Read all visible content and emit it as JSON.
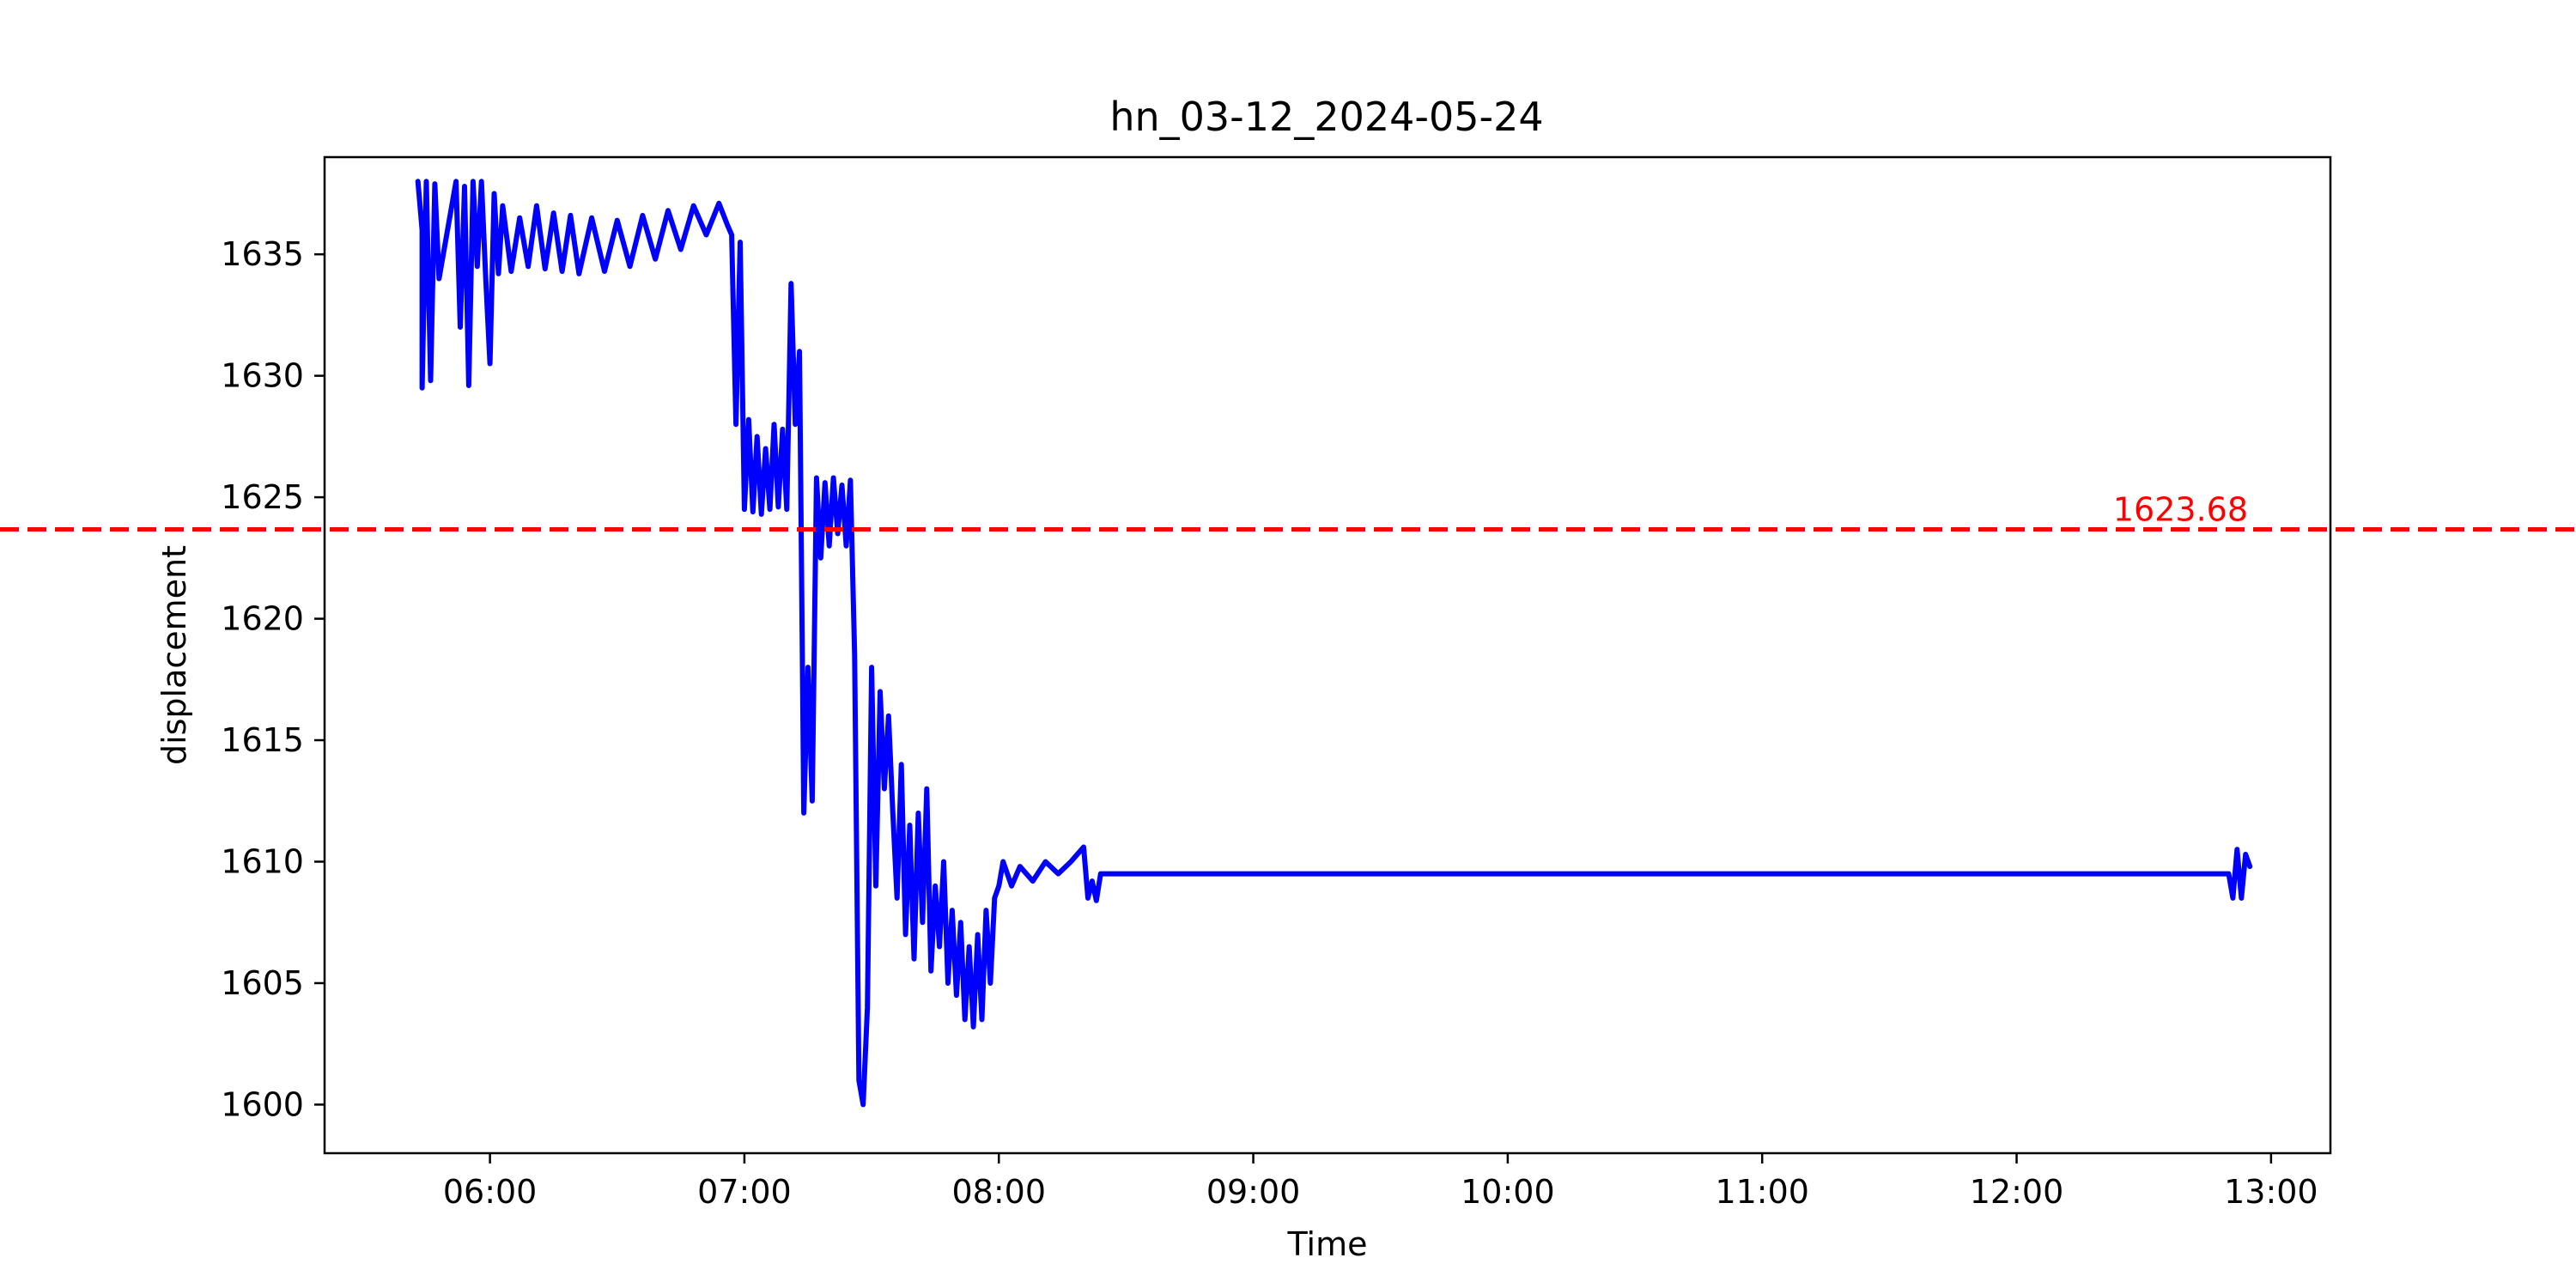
{
  "chart_data": {
    "type": "line",
    "title": "hn_03-12_2024-05-24",
    "xlabel": "Time",
    "ylabel": "displacement",
    "x_unit": "HH:MM",
    "xlim": [
      "05:21",
      "13:14"
    ],
    "ylim": [
      1598.0,
      1639.0
    ],
    "x_ticks": [
      "06:00",
      "07:00",
      "08:00",
      "09:00",
      "10:00",
      "11:00",
      "12:00",
      "13:00"
    ],
    "y_ticks": [
      1600,
      1605,
      1610,
      1615,
      1620,
      1625,
      1630,
      1635
    ],
    "grid": false,
    "colors": {
      "series": "#0000ff",
      "reference": "#ff0000",
      "axes": "#000000"
    },
    "reference_line": {
      "value": 1623.68,
      "label": "1623.68",
      "style": "dashed"
    },
    "series": [
      {
        "values": [
          [
            "05:43",
            1638.0
          ],
          [
            "05:44",
            1636.0
          ],
          [
            "05:44",
            1629.5
          ],
          [
            "05:45",
            1638.0
          ],
          [
            "05:46",
            1629.8
          ],
          [
            "05:47",
            1637.9
          ],
          [
            "05:48",
            1634.0
          ],
          [
            "05:52",
            1638.0
          ],
          [
            "05:53",
            1632.0
          ],
          [
            "05:54",
            1637.8
          ],
          [
            "05:55",
            1629.6
          ],
          [
            "05:56",
            1638.0
          ],
          [
            "05:57",
            1634.5
          ],
          [
            "05:58",
            1638.0
          ],
          [
            "05:59",
            1634.0
          ],
          [
            "06:00",
            1630.5
          ],
          [
            "06:01",
            1637.5
          ],
          [
            "06:02",
            1634.2
          ],
          [
            "06:03",
            1637.0
          ],
          [
            "06:05",
            1634.3
          ],
          [
            "06:07",
            1636.5
          ],
          [
            "06:09",
            1634.5
          ],
          [
            "06:11",
            1637.0
          ],
          [
            "06:13",
            1634.4
          ],
          [
            "06:15",
            1636.7
          ],
          [
            "06:17",
            1634.3
          ],
          [
            "06:19",
            1636.6
          ],
          [
            "06:21",
            1634.2
          ],
          [
            "06:24",
            1636.5
          ],
          [
            "06:27",
            1634.3
          ],
          [
            "06:30",
            1636.4
          ],
          [
            "06:33",
            1634.5
          ],
          [
            "06:36",
            1636.6
          ],
          [
            "06:39",
            1634.8
          ],
          [
            "06:42",
            1636.8
          ],
          [
            "06:45",
            1635.2
          ],
          [
            "06:48",
            1637.0
          ],
          [
            "06:51",
            1635.8
          ],
          [
            "06:54",
            1637.1
          ],
          [
            "06:56",
            1636.2
          ],
          [
            "06:57",
            1635.8
          ],
          [
            "06:58",
            1628.0
          ],
          [
            "06:59",
            1635.5
          ],
          [
            "07:00",
            1624.5
          ],
          [
            "07:01",
            1628.2
          ],
          [
            "07:02",
            1624.4
          ],
          [
            "07:03",
            1627.5
          ],
          [
            "07:04",
            1624.3
          ],
          [
            "07:05",
            1627.0
          ],
          [
            "07:06",
            1624.5
          ],
          [
            "07:07",
            1628.0
          ],
          [
            "07:08",
            1624.6
          ],
          [
            "07:09",
            1627.8
          ],
          [
            "07:10",
            1624.5
          ],
          [
            "07:11",
            1633.8
          ],
          [
            "07:12",
            1628.0
          ],
          [
            "07:13",
            1631.0
          ],
          [
            "07:14",
            1612.0
          ],
          [
            "07:15",
            1618.0
          ],
          [
            "07:16",
            1612.5
          ],
          [
            "07:17",
            1625.8
          ],
          [
            "07:18",
            1622.5
          ],
          [
            "07:19",
            1625.6
          ],
          [
            "07:20",
            1623.0
          ],
          [
            "07:21",
            1625.8
          ],
          [
            "07:22",
            1623.5
          ],
          [
            "07:23",
            1625.5
          ],
          [
            "07:24",
            1623.0
          ],
          [
            "07:25",
            1625.7
          ],
          [
            "07:26",
            1618.5
          ],
          [
            "07:27",
            1601.0
          ],
          [
            "07:28",
            1600.0
          ],
          [
            "07:29",
            1604.0
          ],
          [
            "07:30",
            1618.0
          ],
          [
            "07:31",
            1609.0
          ],
          [
            "07:32",
            1617.0
          ],
          [
            "07:33",
            1613.0
          ],
          [
            "07:34",
            1616.0
          ],
          [
            "07:35",
            1612.0
          ],
          [
            "07:36",
            1608.5
          ],
          [
            "07:37",
            1614.0
          ],
          [
            "07:38",
            1607.0
          ],
          [
            "07:39",
            1611.5
          ],
          [
            "07:40",
            1606.0
          ],
          [
            "07:41",
            1612.0
          ],
          [
            "07:42",
            1607.5
          ],
          [
            "07:43",
            1613.0
          ],
          [
            "07:44",
            1605.5
          ],
          [
            "07:45",
            1609.0
          ],
          [
            "07:46",
            1606.5
          ],
          [
            "07:47",
            1610.0
          ],
          [
            "07:48",
            1605.0
          ],
          [
            "07:49",
            1608.0
          ],
          [
            "07:50",
            1604.5
          ],
          [
            "07:51",
            1607.5
          ],
          [
            "07:52",
            1603.5
          ],
          [
            "07:53",
            1606.5
          ],
          [
            "07:54",
            1603.2
          ],
          [
            "07:55",
            1607.0
          ],
          [
            "07:56",
            1603.5
          ],
          [
            "07:57",
            1608.0
          ],
          [
            "07:58",
            1605.0
          ],
          [
            "07:59",
            1608.5
          ],
          [
            "08:00",
            1609.0
          ],
          [
            "08:01",
            1610.0
          ],
          [
            "08:03",
            1609.0
          ],
          [
            "08:05",
            1609.8
          ],
          [
            "08:08",
            1609.2
          ],
          [
            "08:11",
            1610.0
          ],
          [
            "08:14",
            1609.5
          ],
          [
            "08:17",
            1610.0
          ],
          [
            "08:20",
            1610.6
          ],
          [
            "08:21",
            1608.5
          ],
          [
            "08:22",
            1609.2
          ],
          [
            "08:23",
            1608.4
          ],
          [
            "08:24",
            1609.5
          ],
          [
            "08:25",
            1609.5
          ],
          [
            "12:50",
            1609.5
          ],
          [
            "12:51",
            1608.5
          ],
          [
            "12:52",
            1610.5
          ],
          [
            "12:53",
            1608.5
          ],
          [
            "12:54",
            1610.3
          ],
          [
            "12:55",
            1609.8
          ]
        ]
      }
    ]
  }
}
